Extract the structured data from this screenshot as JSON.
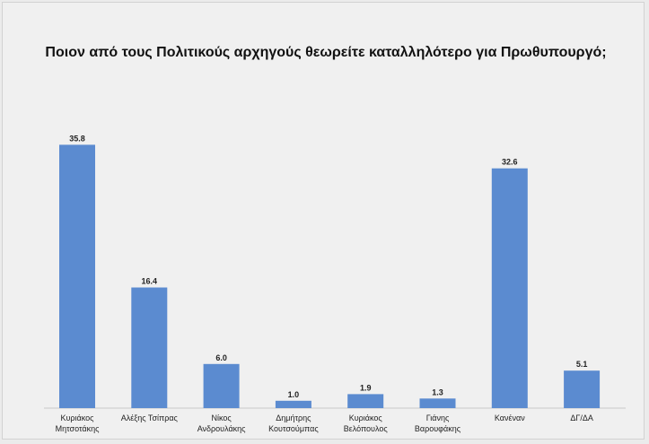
{
  "chart_data": {
    "type": "bar",
    "title": "Ποιον από τους Πολιτικούς αρχηγούς θεωρείτε καταλληλότερο για Πρωθυπουργό;",
    "categories": [
      [
        "Κυριάκος",
        "Μητσοτάκης"
      ],
      [
        "Αλέξης Τσίπρας"
      ],
      [
        "Νίκος",
        "Ανδρουλάκης"
      ],
      [
        "Δημήτρης",
        "Κουτσούμπας"
      ],
      [
        "Κυριάκος",
        "Βελόπουλος"
      ],
      [
        "Γιάνης",
        "Βαρουφάκης"
      ],
      [
        "Κανέναν"
      ],
      [
        "ΔΓ/ΔΑ"
      ]
    ],
    "values": [
      35.8,
      16.4,
      6.0,
      1.0,
      1.9,
      1.3,
      32.6,
      5.1
    ],
    "value_labels": [
      "35.8",
      "16.4",
      "6.0",
      "1.0",
      "1.9",
      "1.3",
      "32.6",
      "5.1"
    ],
    "xlabel": "",
    "ylabel": "",
    "ylim": [
      0,
      40
    ],
    "grid": false,
    "legend": "none",
    "bar_color": "#5b8bd0"
  }
}
